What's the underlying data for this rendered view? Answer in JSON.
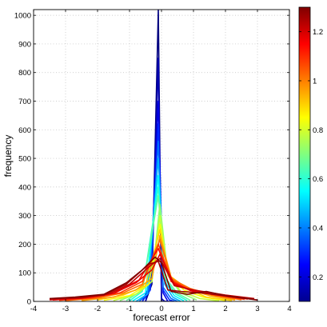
{
  "chart_data": {
    "type": "line",
    "title": "",
    "xlabel": "forecast error",
    "ylabel": "frequency",
    "xlim": [
      -4,
      4
    ],
    "ylim": [
      0,
      1020
    ],
    "xticks": [
      -4,
      -3,
      -2,
      -1,
      0,
      1,
      2,
      3,
      4
    ],
    "yticks": [
      0,
      100,
      200,
      300,
      400,
      500,
      600,
      700,
      800,
      900,
      1000
    ],
    "grid": true,
    "colorbar": {
      "colormap": "jet",
      "range": [
        0.1,
        1.3
      ],
      "ticks": [
        "0.2",
        "0.4",
        "0.6",
        "0.8",
        "1",
        "1.2"
      ],
      "tick_values": [
        0.2,
        0.4,
        0.6,
        0.8,
        1.0,
        1.2
      ]
    },
    "series": [
      {
        "level": 0.1,
        "x": [
          -0.5,
          -0.3,
          -0.1,
          0.0,
          0.1,
          0.2
        ],
        "y": [
          0,
          60,
          1020,
          0,
          0,
          0
        ]
      },
      {
        "level": 0.16,
        "x": [
          -0.5,
          -0.3,
          -0.1,
          0.0,
          0.1,
          0.2
        ],
        "y": [
          0,
          80,
          850,
          10,
          0,
          0
        ]
      },
      {
        "level": 0.22,
        "x": [
          -0.6,
          -0.35,
          -0.1,
          0.05,
          0.2,
          0.35
        ],
        "y": [
          0,
          60,
          700,
          30,
          0,
          0
        ]
      },
      {
        "level": 0.3,
        "x": [
          -0.6,
          -0.35,
          -0.1,
          0.05,
          0.25,
          0.4
        ],
        "y": [
          0,
          40,
          620,
          40,
          5,
          0
        ]
      },
      {
        "level": 0.38,
        "x": [
          -0.7,
          -0.4,
          -0.1,
          0.05,
          0.3,
          0.5
        ],
        "y": [
          0,
          30,
          560,
          50,
          10,
          0
        ]
      },
      {
        "level": 0.46,
        "x": [
          -0.8,
          -0.45,
          -0.1,
          0.1,
          0.35,
          0.6
        ],
        "y": [
          0,
          25,
          500,
          60,
          15,
          0
        ]
      },
      {
        "level": 0.54,
        "x": [
          -0.9,
          -0.5,
          -0.1,
          0.1,
          0.4,
          0.7
        ],
        "y": [
          2,
          30,
          440,
          70,
          20,
          2
        ]
      },
      {
        "level": 0.6,
        "x": [
          -1.0,
          -0.6,
          -0.1,
          0.1,
          0.45,
          0.8
        ],
        "y": [
          2,
          35,
          400,
          80,
          25,
          3
        ]
      },
      {
        "level": 0.66,
        "x": [
          -1.1,
          -0.6,
          -0.1,
          0.1,
          0.5,
          0.9
        ],
        "y": [
          3,
          40,
          370,
          85,
          28,
          4
        ]
      },
      {
        "level": 0.72,
        "x": [
          -1.3,
          -0.7,
          -0.3,
          -0.05,
          0.2,
          0.6,
          1.1
        ],
        "y": [
          3,
          30,
          70,
          340,
          90,
          30,
          5
        ]
      },
      {
        "level": 0.78,
        "x": [
          -1.5,
          -0.8,
          -0.3,
          -0.05,
          0.2,
          0.6,
          1.2,
          1.8
        ],
        "y": [
          3,
          25,
          70,
          300,
          95,
          35,
          10,
          2
        ]
      },
      {
        "level": 0.84,
        "x": [
          -1.8,
          -1.0,
          -0.4,
          -0.05,
          0.2,
          0.7,
          1.3,
          2.0
        ],
        "y": [
          4,
          20,
          60,
          270,
          95,
          40,
          15,
          3
        ]
      },
      {
        "level": 0.9,
        "x": [
          -2.0,
          -1.2,
          -0.5,
          -0.05,
          0.25,
          0.8,
          1.4,
          2.2
        ],
        "y": [
          5,
          22,
          55,
          250,
          90,
          45,
          15,
          3
        ]
      },
      {
        "level": 0.96,
        "x": [
          -2.5,
          -1.5,
          -0.8,
          -0.3,
          -0.05,
          0.3,
          0.8,
          1.5,
          2.3
        ],
        "y": [
          3,
          15,
          40,
          80,
          230,
          85,
          45,
          20,
          5
        ]
      },
      {
        "level": 1.02,
        "x": [
          -3.0,
          -2.0,
          -1.2,
          -0.6,
          -0.05,
          0.3,
          0.9,
          1.6,
          2.5
        ],
        "y": [
          3,
          12,
          30,
          60,
          215,
          80,
          45,
          22,
          6
        ]
      },
      {
        "level": 1.08,
        "x": [
          -3.2,
          -2.2,
          -1.3,
          -0.6,
          -0.1,
          0.3,
          0.9,
          1.7,
          2.6
        ],
        "y": [
          4,
          12,
          30,
          70,
          200,
          75,
          40,
          22,
          7
        ]
      },
      {
        "level": 1.14,
        "x": [
          -3.4,
          -2.4,
          -1.5,
          -0.7,
          -0.1,
          0.3,
          0.9,
          1.8,
          2.7
        ],
        "y": [
          5,
          12,
          28,
          75,
          185,
          70,
          38,
          22,
          8
        ]
      },
      {
        "level": 1.18,
        "x": [
          -3.5,
          -2.5,
          -1.5,
          -0.8,
          -0.3,
          -0.05,
          0.4,
          1.0,
          1.9,
          2.8
        ],
        "y": [
          6,
          12,
          28,
          65,
          110,
          165,
          60,
          35,
          20,
          8
        ]
      },
      {
        "level": 1.22,
        "x": [
          -3.5,
          -2.5,
          -1.6,
          -1.0,
          -0.4,
          -0.05,
          0.4,
          1.0,
          2.0,
          2.9
        ],
        "y": [
          8,
          12,
          28,
          60,
          120,
          150,
          55,
          40,
          22,
          10
        ]
      },
      {
        "level": 1.26,
        "x": [
          -3.5,
          -2.6,
          -1.8,
          -1.1,
          -0.4,
          -0.1,
          0.2,
          0.6,
          1.2,
          2.0,
          2.9
        ],
        "y": [
          8,
          14,
          22,
          60,
          130,
          140,
          40,
          35,
          30,
          20,
          8
        ]
      },
      {
        "level": 1.3,
        "x": [
          -3.5,
          -2.7,
          -1.8,
          -1.1,
          -0.6,
          -0.2,
          0.0,
          0.3,
          0.8,
          1.4,
          2.1,
          3.0
        ],
        "y": [
          10,
          15,
          25,
          65,
          110,
          155,
          135,
          35,
          25,
          35,
          18,
          5
        ]
      }
    ]
  }
}
